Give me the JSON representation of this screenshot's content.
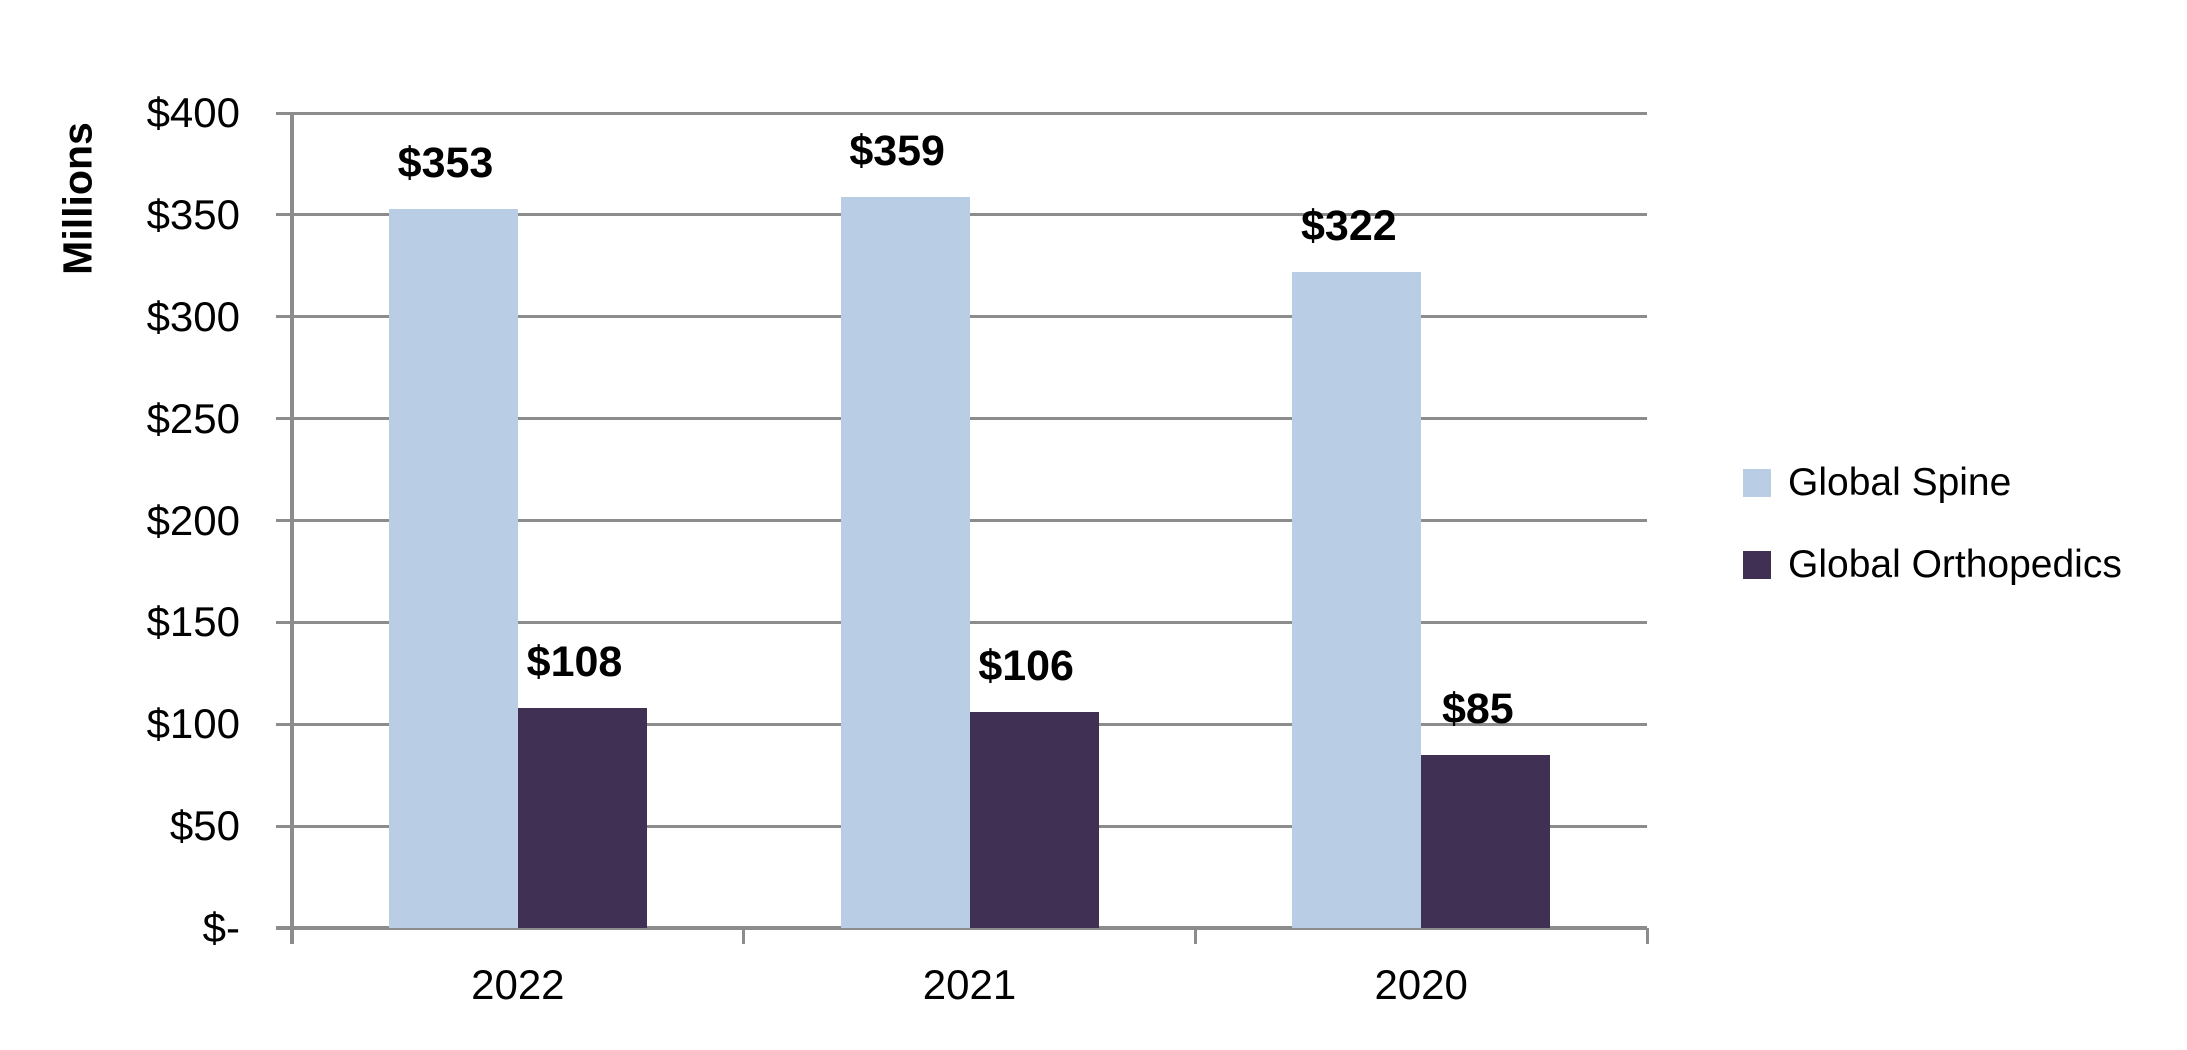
{
  "chart_data": {
    "type": "bar",
    "title": "",
    "categories": [
      "2022",
      "2021",
      "2020"
    ],
    "series": [
      {
        "name": "Global Spine",
        "color": "#b9cde5",
        "values": [
          353,
          359,
          322
        ],
        "labels": [
          "$353",
          "$359",
          "$322"
        ]
      },
      {
        "name": "Global Orthopedics",
        "color": "#403154",
        "values": [
          108,
          106,
          85
        ],
        "labels": [
          "$108",
          "$106",
          "$85"
        ]
      }
    ],
    "ylabel": "Millions",
    "ylim": [
      0,
      400
    ],
    "ytick_step": 50,
    "ytick_labels": [
      "$400",
      "$350",
      "$300",
      "$250",
      "$200",
      "$150",
      "$100",
      "$50",
      "$-"
    ],
    "grid": true,
    "legend_position": "right",
    "axis_color": "#8c8c8c",
    "text_color": "#000000"
  }
}
